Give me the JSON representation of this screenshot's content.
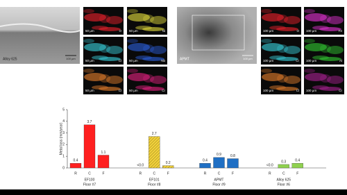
{
  "images": {
    "panels": [
      {
        "label": "Alloy 625",
        "scale": "100 µm",
        "maps": [
          {
            "element": "O",
            "scale": "50 µm",
            "color": "#e0202a"
          },
          {
            "element": "Ni",
            "scale": "50 µm",
            "color": "#d8d23a"
          },
          {
            "element": "Cl",
            "scale": "50 µm",
            "color": "#36c4d0"
          },
          {
            "element": "Nb",
            "scale": "50 µm",
            "color": "#2a5ad0"
          },
          {
            "element": "Cl",
            "scale": "50 µm",
            "color": "#d8782a"
          },
          {
            "element": "Cr",
            "scale": "50 µm",
            "color": "#d8207a"
          }
        ]
      },
      {
        "label": "APMT",
        "scale": "100 µm",
        "maps": [
          {
            "element": "O",
            "scale": "100 µm",
            "color": "#e0202a"
          },
          {
            "element": "Fe",
            "scale": "100 µm",
            "color": "#d830c8"
          },
          {
            "element": "Cr",
            "scale": "100 µm",
            "color": "#36c4d0"
          },
          {
            "element": "Al",
            "scale": "100 µm",
            "color": "#30c030"
          },
          {
            "element": "Cl",
            "scale": "100 µm",
            "color": "#d8782a"
          },
          {
            "element": "Cr",
            "scale": "100 µm",
            "color": "#a0208a"
          }
        ]
      }
    ]
  },
  "chart_data": {
    "type": "bar",
    "y_label": "Metal loss (mm/year)",
    "categories": [
      "R",
      "C",
      "F"
    ],
    "series": [
      {
        "name": "EF100",
        "floor": "Floor #7",
        "color": "#ff2020",
        "values": [
          0.4,
          3.7,
          1.1
        ]
      },
      {
        "name": "EF101",
        "floor": "Floor #8",
        "color": "#f2d13c",
        "hatch": true,
        "values": [
          0,
          2.7,
          0.2
        ],
        "value_labels": [
          "<0.0",
          "2.7",
          "0.2"
        ]
      },
      {
        "name": "APMT",
        "floor": "Floor #9",
        "color": "#1f6fc4",
        "values": [
          0.4,
          0.9,
          0.8
        ]
      },
      {
        "name": "Alloy 625",
        "floor": "Floor #6",
        "color": "#8fd14f",
        "values": [
          0,
          0.3,
          0.4
        ],
        "value_labels": [
          "<0.0",
          "0.3",
          "0.4"
        ]
      }
    ],
    "ylim": [
      0,
      5
    ],
    "yticks": [
      0,
      1,
      2,
      3,
      4,
      5
    ]
  }
}
